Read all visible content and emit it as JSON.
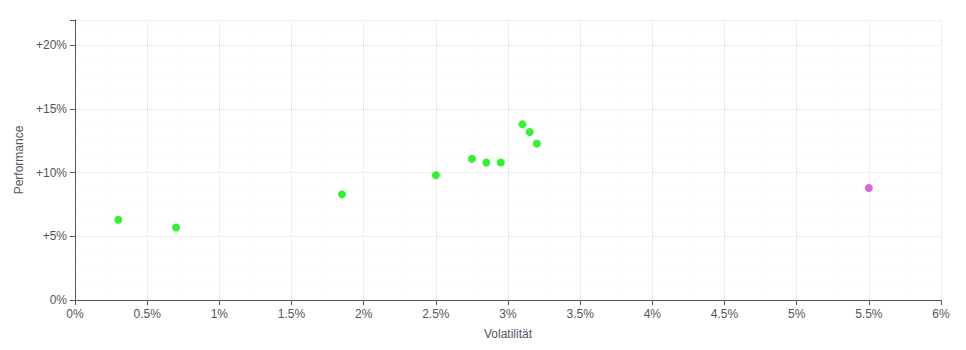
{
  "chart_data": {
    "type": "scatter",
    "xlabel": "Volatilität",
    "ylabel": "Performance",
    "series": [
      {
        "color": "#00ee00",
        "x": [
          0.003,
          0.007,
          0.0185,
          0.025,
          0.0275,
          0.0285,
          0.0295,
          0.031,
          0.0315,
          0.032
        ],
        "values": [
          0.063,
          0.057,
          0.083,
          0.098,
          0.111,
          0.108,
          0.108,
          0.138,
          0.132,
          0.123
        ]
      },
      {
        "color": "#cc44cc",
        "x": [
          0.055
        ],
        "values": [
          0.088
        ]
      }
    ],
    "xlim": [
      0,
      0.06
    ],
    "ylim": [
      0,
      0.22
    ],
    "xticks": [
      {
        "value": 0.0,
        "label": "0%"
      },
      {
        "value": 0.005,
        "label": "0.5%"
      },
      {
        "value": 0.01,
        "label": "1%"
      },
      {
        "value": 0.015,
        "label": "1.5%"
      },
      {
        "value": 0.02,
        "label": "2%"
      },
      {
        "value": 0.025,
        "label": "2.5%"
      },
      {
        "value": 0.03,
        "label": "3%"
      },
      {
        "value": 0.035,
        "label": "3.5%"
      },
      {
        "value": 0.04,
        "label": "4%"
      },
      {
        "value": 0.045,
        "label": "4.5%"
      },
      {
        "value": 0.05,
        "label": "5%"
      },
      {
        "value": 0.055,
        "label": "5.5%"
      },
      {
        "value": 0.06,
        "label": "6%"
      }
    ],
    "yticks": [
      {
        "value": 0.0,
        "label": "0%"
      },
      {
        "value": 0.05,
        "label": "+5%"
      },
      {
        "value": 0.1,
        "label": "+10%"
      },
      {
        "value": 0.15,
        "label": "+15%"
      },
      {
        "value": 0.2,
        "label": "+20%"
      }
    ],
    "grid": true
  }
}
